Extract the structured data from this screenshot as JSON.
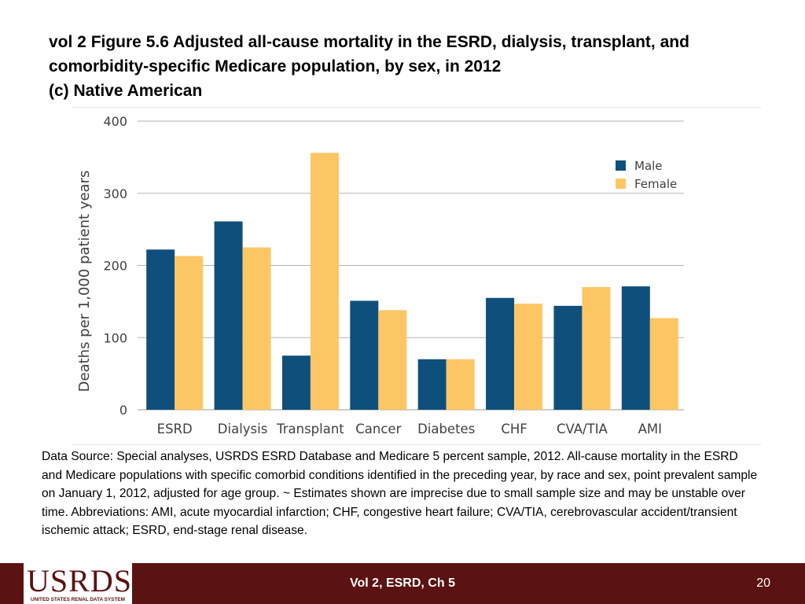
{
  "title_lines": [
    "vol 2 Figure 5.6 Adjusted all-cause mortality in the ESRD, dialysis, transplant, and",
    "comorbidity-specific Medicare population, by sex, in 2012",
    "(c) Native American"
  ],
  "chart_data": {
    "type": "bar",
    "title": "",
    "xlabel": "",
    "ylabel": "Deaths per 1,000 patient years",
    "ylim": [
      0,
      400
    ],
    "yticks": [
      0,
      100,
      200,
      300,
      400
    ],
    "grid": true,
    "legend_position": "top-right",
    "categories": [
      "ESRD",
      "Dialysis",
      "Transplant",
      "Cancer",
      "Diabetes",
      "CHF",
      "CVA/TIA",
      "AMI"
    ],
    "series": [
      {
        "name": "Male",
        "color": "#0f4f7c",
        "values": [
          222,
          261,
          75,
          151,
          70,
          155,
          144,
          171
        ]
      },
      {
        "name": "Female",
        "color": "#fdc665",
        "values": [
          213,
          225,
          356,
          138,
          70,
          147,
          170,
          127
        ]
      }
    ]
  },
  "source_text": "Data Source: Special analyses, USRDS ESRD Database and Medicare 5 percent sample, 2012. All-cause mortality in the ESRD and Medicare populations with specific comorbid conditions identified in the preceding year, by race and sex, point prevalent sample on January 1, 2012, adjusted for age group. ~ Estimates shown are imprecise due to small sample size and may be unstable over time. Abbreviations: AMI, acute myocardial infarction; CHF, congestive heart failure; CVA/TIA, cerebrovascular accident/transient ischemic attack; ESRD, end-stage renal disease.",
  "footer": {
    "logo_text": "USRDS",
    "logo_subtext": "UNITED STATES RENAL DATA SYSTEM",
    "center_text": "Vol 2, ESRD, Ch 5",
    "page_number": "20",
    "background_color": "#5b1212"
  }
}
